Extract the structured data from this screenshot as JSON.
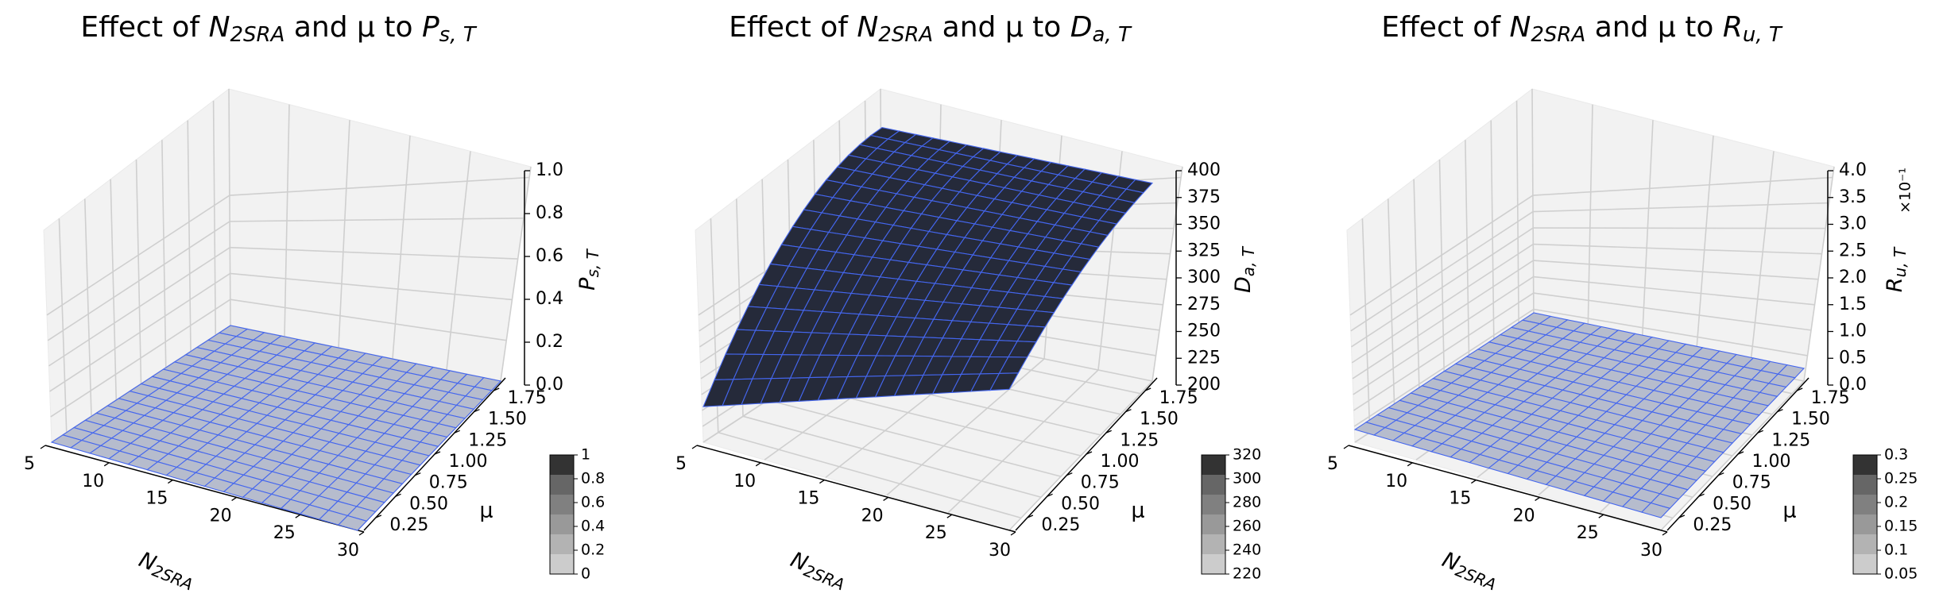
{
  "chart_data": [
    {
      "type": "surface",
      "title": {
        "pre": "Effect of ",
        "n": "N",
        "nsub": "2SRA",
        "mid": " and μ to ",
        "v": "P",
        "vsub": "s, T"
      },
      "xlabel": {
        "main": "N",
        "sub": "2SRA"
      },
      "ylabel": "μ",
      "zlabel": {
        "main": "P",
        "sub": "s, T"
      },
      "xlim": [
        5,
        30
      ],
      "ylim": [
        0.1,
        1.9
      ],
      "zlim": [
        0,
        1
      ],
      "x_ticks": [
        "5",
        "10",
        "15",
        "20",
        "25",
        "30"
      ],
      "y_ticks": [
        "0.25",
        "0.50",
        "0.75",
        "1.00",
        "1.25",
        "1.50",
        "1.75"
      ],
      "z_ticks": [
        "0.0",
        "0.2",
        "0.4",
        "0.6",
        "0.8",
        "1.0"
      ],
      "z_offset": "",
      "surface": {
        "model": "flat",
        "base": 0.0,
        "n_amp": 0.0,
        "mu_amp": 0.0,
        "face_color": "#b6bccd",
        "edge_color": "#4466ee"
      },
      "colorbar_ticks": [
        "0",
        "0.2",
        "0.4",
        "0.6",
        "0.8",
        "1"
      ],
      "colorbar_colors": [
        "#cccccc",
        "#b3b3b3",
        "#999999",
        "#808080",
        "#666666",
        "#333333"
      ]
    },
    {
      "type": "surface",
      "title": {
        "pre": "Effect of ",
        "n": "N",
        "nsub": "2SRA",
        "mid": " and μ to ",
        "v": "D",
        "vsub": "a, T"
      },
      "xlabel": {
        "main": "N",
        "sub": "2SRA"
      },
      "ylabel": "μ",
      "zlabel": {
        "main": "D",
        "sub": "a, T"
      },
      "xlim": [
        5,
        30
      ],
      "ylim": [
        0.1,
        1.9
      ],
      "zlim": [
        200,
        400
      ],
      "x_ticks": [
        "5",
        "10",
        "15",
        "20",
        "25",
        "30"
      ],
      "y_ticks": [
        "0.25",
        "0.50",
        "0.75",
        "1.00",
        "1.25",
        "1.50",
        "1.75"
      ],
      "z_ticks": [
        "200",
        "225",
        "250",
        "275",
        "300",
        "325",
        "350",
        "375",
        "400"
      ],
      "z_offset": "",
      "surface": {
        "model": "curved",
        "base": 395,
        "n_amp": 160,
        "mu_amp": 40,
        "face_color": "#252a3a",
        "edge_color": "#4466ee"
      },
      "colorbar_ticks": [
        "220",
        "240",
        "260",
        "280",
        "300",
        "320"
      ],
      "colorbar_colors": [
        "#cccccc",
        "#b3b3b3",
        "#999999",
        "#808080",
        "#666666",
        "#333333"
      ]
    },
    {
      "type": "surface",
      "title": {
        "pre": "Effect of ",
        "n": "N",
        "nsub": "2SRA",
        "mid": " and μ to ",
        "v": "R",
        "vsub": "u, T"
      },
      "xlabel": {
        "main": "N",
        "sub": "2SRA"
      },
      "ylabel": "μ",
      "zlabel": {
        "main": "R",
        "sub": "u, T"
      },
      "xlim": [
        5,
        30
      ],
      "ylim": [
        0.1,
        1.9
      ],
      "zlim": [
        0,
        4
      ],
      "x_ticks": [
        "5",
        "10",
        "15",
        "20",
        "25",
        "30"
      ],
      "y_ticks": [
        "0.25",
        "0.50",
        "0.75",
        "1.00",
        "1.25",
        "1.50",
        "1.75"
      ],
      "z_ticks": [
        "0.0",
        "0.5",
        "1.0",
        "1.5",
        "2.0",
        "2.5",
        "3.0",
        "3.5",
        "4.0"
      ],
      "z_offset": "×10⁻¹",
      "surface": {
        "model": "flat",
        "base": 0.25,
        "n_amp": 0.0,
        "mu_amp": 0.0,
        "face_color": "#b6bccd",
        "edge_color": "#4466ee"
      },
      "colorbar_ticks": [
        "0.05",
        "0.1",
        "0.15",
        "0.2",
        "0.25",
        "0.3"
      ],
      "colorbar_colors": [
        "#cccccc",
        "#b3b3b3",
        "#999999",
        "#808080",
        "#666666",
        "#333333"
      ]
    }
  ]
}
